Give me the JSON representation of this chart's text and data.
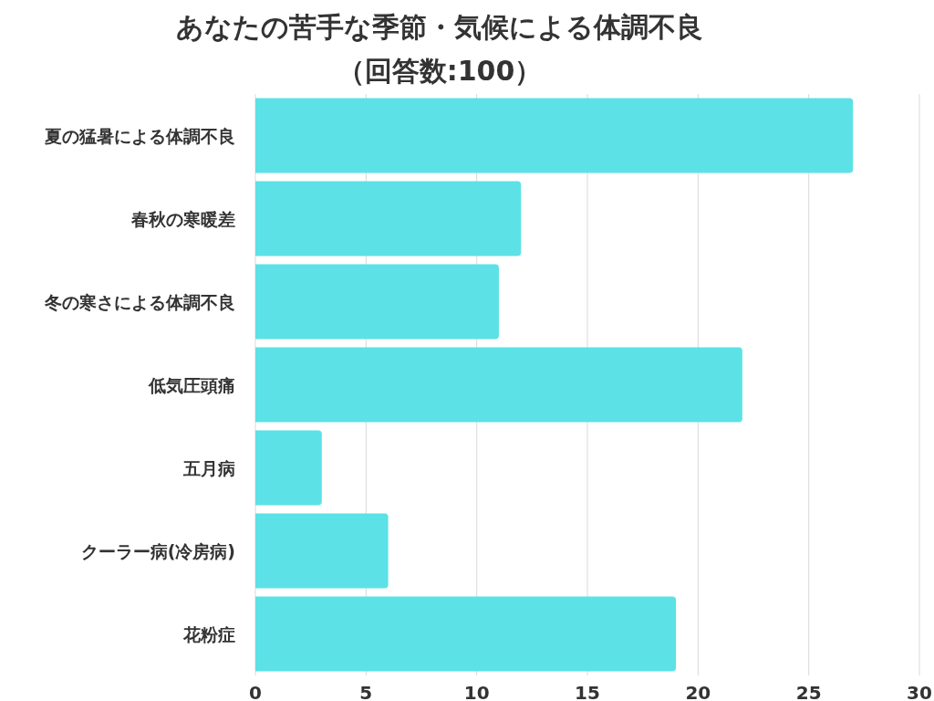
{
  "chart_data": {
    "type": "bar",
    "orientation": "horizontal",
    "title": "あなたの苦手な季節・気候による体調不良",
    "subtitle": "（回答数:100）",
    "categories": [
      "夏の猛暑による体調不良",
      "春秋の寒暖差",
      "冬の寒さによる体調不良",
      "低気圧頭痛",
      "五月病",
      "クーラー病(冷房病)",
      "花粉症"
    ],
    "values": [
      27,
      12,
      11,
      22,
      3,
      6,
      19
    ],
    "color": "#5ce1e6",
    "xlim": [
      0,
      30
    ],
    "xticks": [
      0,
      5,
      10,
      15,
      20,
      25,
      30
    ],
    "grid": "x"
  }
}
